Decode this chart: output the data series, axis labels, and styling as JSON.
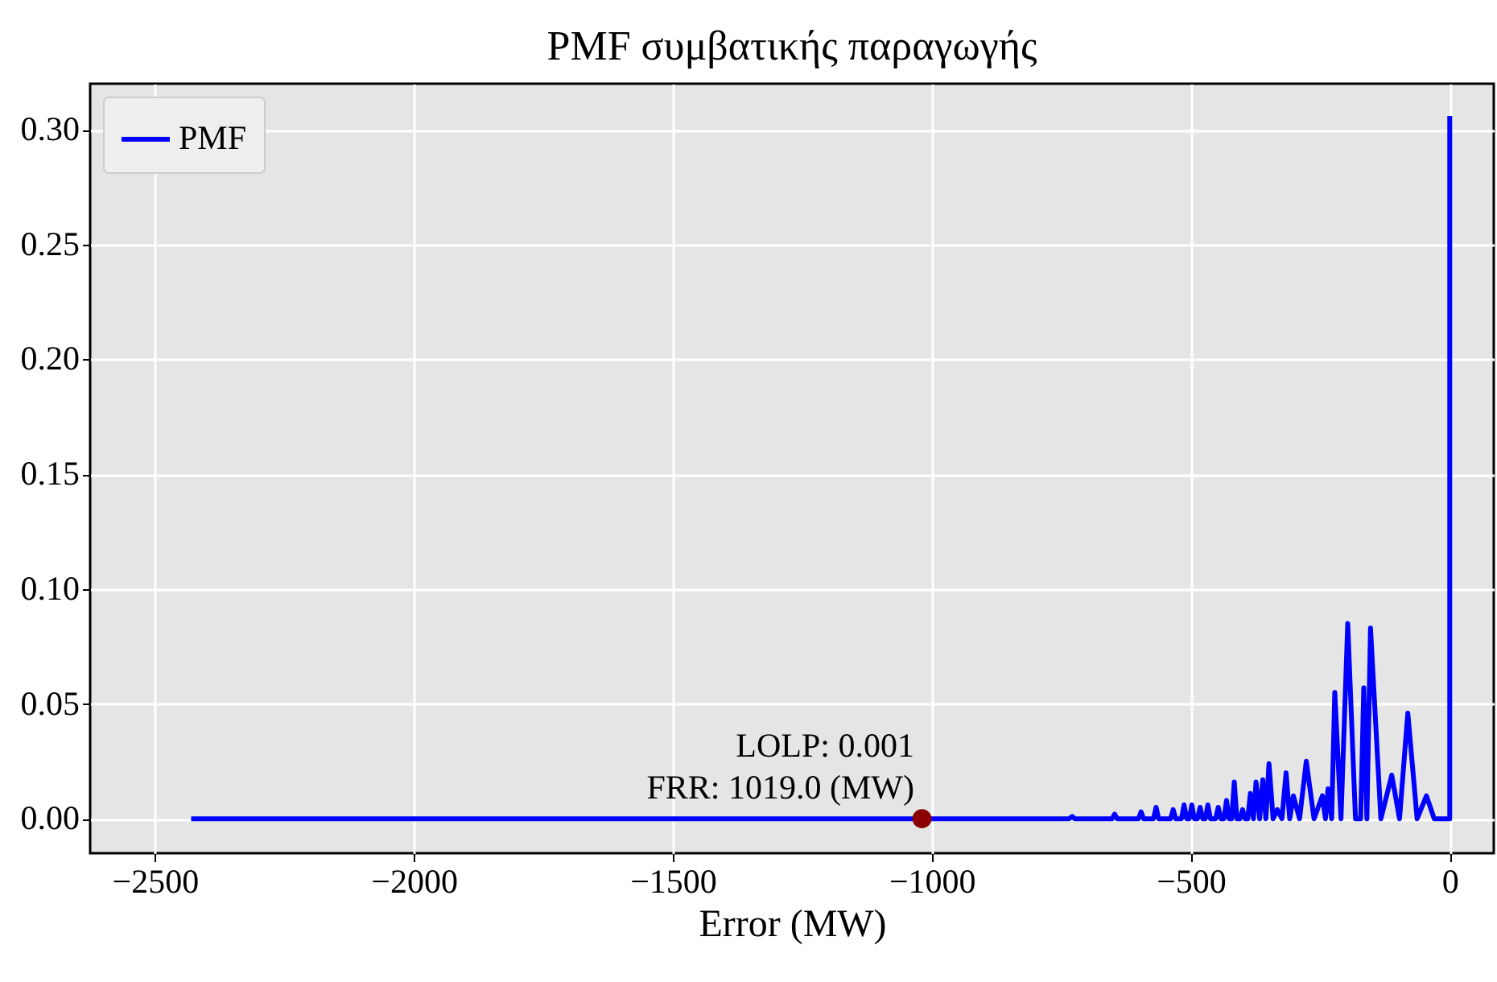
{
  "chart_data": {
    "type": "line",
    "title": "PMF συμβατικής παραγωγής",
    "xlabel": "Error (MW)",
    "series": [
      {
        "name": "PMF",
        "color": "#0000ff",
        "x": [
          -2430,
          -735,
          -729,
          -724,
          -652,
          -647,
          -642,
          -601,
          -596,
          -591,
          -572,
          -567,
          -562,
          -539,
          -534,
          -529,
          -518,
          -513,
          -508,
          -503,
          -498,
          -493,
          -487,
          -482,
          -477,
          -472,
          -467,
          -462,
          -452,
          -447,
          -442,
          -436,
          -431,
          -426,
          -421,
          -416,
          -411,
          -405,
          -400,
          -395,
          -390,
          -385,
          -379,
          -374,
          -367,
          -361,
          -355,
          -349,
          -341,
          -333,
          -324,
          -316,
          -309,
          -302,
          -290,
          -277,
          -262,
          -246,
          -240,
          -235,
          -228,
          -222,
          -210,
          -197,
          -182,
          -172,
          -166,
          -160,
          -153,
          -133,
          -112,
          -97,
          -81,
          -63,
          -45,
          -30,
          0,
          0
        ],
        "values": [
          0,
          0,
          0.001,
          0,
          0,
          0.002,
          0,
          0,
          0.003,
          0,
          0,
          0.005,
          0,
          0,
          0.004,
          0,
          0,
          0.006,
          0,
          0,
          0.006,
          0,
          0,
          0.005,
          0,
          0,
          0.006,
          0,
          0,
          0.005,
          0,
          0,
          0.008,
          0,
          0,
          0.016,
          0,
          0,
          0.004,
          0,
          0,
          0.011,
          0,
          0.016,
          0,
          0.017,
          0,
          0.024,
          0,
          0.004,
          0,
          0.02,
          0,
          0.01,
          0,
          0.025,
          0,
          0.01,
          0,
          0.013,
          0,
          0.055,
          0,
          0.085,
          0,
          0,
          0.057,
          0,
          0.083,
          0,
          0.019,
          0,
          0.046,
          0,
          0.01,
          0,
          0,
          0.306
        ]
      },
      {
        "type": "scatter",
        "color": "#8b0000",
        "marker": "circle",
        "x": [
          -1019
        ],
        "values": [
          0
        ]
      }
    ],
    "annotations": [
      "LOLP: 0.001\nFRR: 1019.0 (MW)"
    ],
    "xlim": [
      -2625,
      85
    ],
    "xticks": [
      {
        "value": -2500,
        "label": "−2500"
      },
      {
        "value": -2000,
        "label": "−2000"
      },
      {
        "value": -1500,
        "label": "−1500"
      },
      {
        "value": -1000,
        "label": "−1000"
      },
      {
        "value": -500,
        "label": "−500"
      },
      0
    ],
    "ylim": [
      -0.015,
      0.32
    ],
    "yticks": [
      {
        "value": 0,
        "label": "0.00"
      },
      {
        "value": 0.05,
        "label": "0.05"
      },
      {
        "value": 0.1,
        "label": "0.10"
      },
      {
        "value": 0.15,
        "label": "0.15"
      },
      {
        "value": 0.2,
        "label": "0.20"
      },
      {
        "value": 0.25,
        "label": "0.25"
      },
      {
        "value": 0.3,
        "label": "0.30"
      }
    ],
    "grid": true,
    "legend": "top left",
    "line_style": "solid"
  }
}
